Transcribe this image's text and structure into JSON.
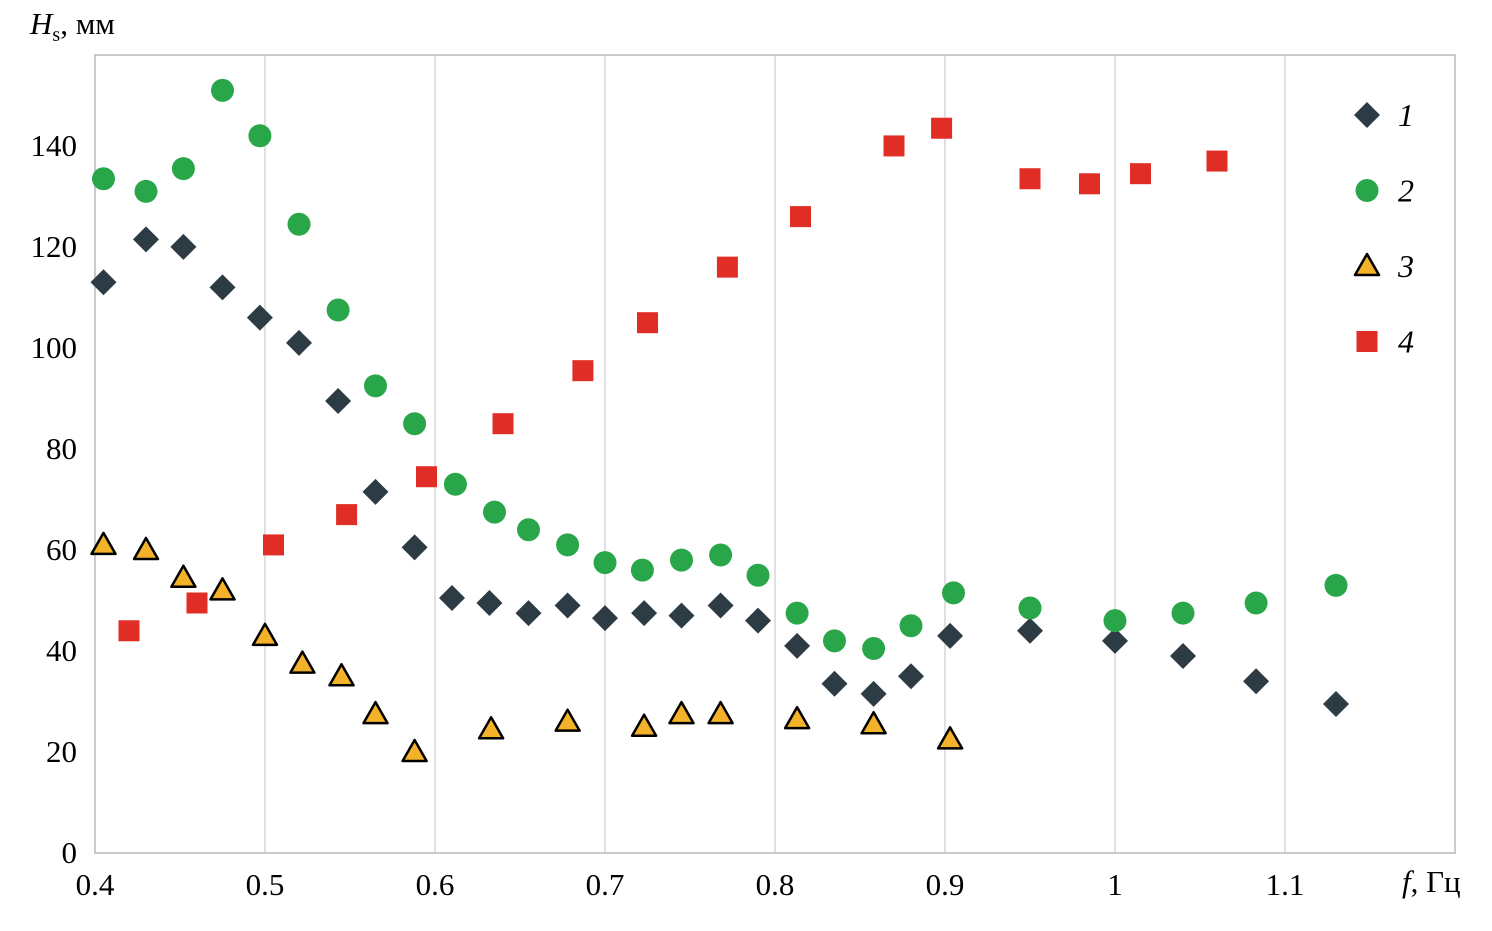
{
  "chart_data": {
    "type": "scatter",
    "title": "",
    "xlabel": "f, Гц",
    "ylabel": "Hs, мм",
    "xlabel_parts": {
      "var": "f",
      "unit": ", Гц"
    },
    "ylabel_parts": {
      "var": "H",
      "sub": "s",
      "unit": ", мм"
    },
    "xlim": [
      0.4,
      1.2
    ],
    "ylim": [
      0,
      158
    ],
    "xticks": [
      0.4,
      0.5,
      0.6,
      0.7,
      0.8,
      0.9,
      1,
      1.1
    ],
    "xtick_labels": [
      "0.4",
      "0.5",
      "0.6",
      "0.7",
      "0.8",
      "0.9",
      "1",
      "1.1"
    ],
    "yticks": [
      0,
      20,
      40,
      60,
      80,
      100,
      120,
      140
    ],
    "ytick_labels": [
      "0",
      "20",
      "40",
      "60",
      "80",
      "100",
      "120",
      "140"
    ],
    "grid": "vertical-only",
    "grid_color": "#d6d6d6",
    "frame_color": "#c4c4c4",
    "legend_position": "top-right-inside",
    "series": [
      {
        "name": "1",
        "marker": "diamond",
        "color": "#2d3b45",
        "points": [
          [
            0.405,
            113
          ],
          [
            0.43,
            121.5
          ],
          [
            0.452,
            120
          ],
          [
            0.475,
            112
          ],
          [
            0.497,
            106
          ],
          [
            0.52,
            101
          ],
          [
            0.543,
            89.5
          ],
          [
            0.565,
            71.5
          ],
          [
            0.588,
            60.5
          ],
          [
            0.61,
            50.5
          ],
          [
            0.632,
            49.5
          ],
          [
            0.655,
            47.5
          ],
          [
            0.678,
            49
          ],
          [
            0.7,
            46.5
          ],
          [
            0.723,
            47.5
          ],
          [
            0.745,
            47
          ],
          [
            0.768,
            49
          ],
          [
            0.79,
            46
          ],
          [
            0.813,
            41
          ],
          [
            0.835,
            33.5
          ],
          [
            0.858,
            31.5
          ],
          [
            0.88,
            35
          ],
          [
            0.903,
            43
          ],
          [
            0.95,
            44
          ],
          [
            1.0,
            42
          ],
          [
            1.04,
            39
          ],
          [
            1.083,
            34
          ],
          [
            1.13,
            29.5
          ]
        ]
      },
      {
        "name": "2",
        "marker": "circle",
        "color": "#2aa64a",
        "points": [
          [
            0.405,
            133.5
          ],
          [
            0.43,
            131
          ],
          [
            0.452,
            135.5
          ],
          [
            0.475,
            151
          ],
          [
            0.497,
            142
          ],
          [
            0.52,
            124.5
          ],
          [
            0.543,
            107.5
          ],
          [
            0.565,
            92.5
          ],
          [
            0.588,
            85
          ],
          [
            0.612,
            73
          ],
          [
            0.635,
            67.5
          ],
          [
            0.655,
            64
          ],
          [
            0.678,
            61
          ],
          [
            0.7,
            57.5
          ],
          [
            0.722,
            56
          ],
          [
            0.745,
            58
          ],
          [
            0.768,
            59
          ],
          [
            0.79,
            55
          ],
          [
            0.813,
            47.5
          ],
          [
            0.835,
            42
          ],
          [
            0.858,
            40.5
          ],
          [
            0.88,
            45
          ],
          [
            0.905,
            51.5
          ],
          [
            0.95,
            48.5
          ],
          [
            1.0,
            46
          ],
          [
            1.04,
            47.5
          ],
          [
            1.083,
            49.5
          ],
          [
            1.13,
            53
          ]
        ]
      },
      {
        "name": "3",
        "marker": "triangle",
        "color": "#f3b229",
        "stroke": "#000000",
        "points": [
          [
            0.405,
            61
          ],
          [
            0.43,
            60
          ],
          [
            0.452,
            54.5
          ],
          [
            0.475,
            52
          ],
          [
            0.5,
            43
          ],
          [
            0.522,
            37.5
          ],
          [
            0.545,
            35
          ],
          [
            0.565,
            27.5
          ],
          [
            0.588,
            20
          ],
          [
            0.633,
            24.5
          ],
          [
            0.678,
            26
          ],
          [
            0.723,
            25
          ],
          [
            0.745,
            27.5
          ],
          [
            0.768,
            27.5
          ],
          [
            0.813,
            26.5
          ],
          [
            0.858,
            25.5
          ],
          [
            0.903,
            22.5
          ]
        ]
      },
      {
        "name": "4",
        "marker": "square",
        "color": "#e02d26",
        "points": [
          [
            0.42,
            44
          ],
          [
            0.46,
            49.5
          ],
          [
            0.505,
            61
          ],
          [
            0.548,
            67
          ],
          [
            0.595,
            74.5
          ],
          [
            0.64,
            85
          ],
          [
            0.687,
            95.5
          ],
          [
            0.725,
            105
          ],
          [
            0.772,
            116
          ],
          [
            0.815,
            126
          ],
          [
            0.87,
            140
          ],
          [
            0.898,
            143.5
          ],
          [
            0.95,
            133.5
          ],
          [
            0.985,
            132.5
          ],
          [
            1.015,
            134.5
          ],
          [
            1.06,
            137
          ]
        ]
      }
    ]
  }
}
